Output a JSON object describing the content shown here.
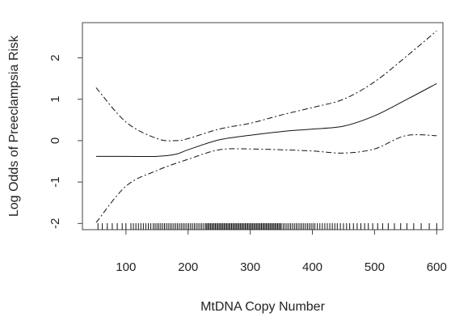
{
  "chart_data": {
    "type": "line",
    "xlabel": "MtDNA Copy Number",
    "ylabel": "Log Odds of Preeclampsia Risk",
    "xlim": [
      30,
      610
    ],
    "ylim": [
      -2.15,
      2.85
    ],
    "x_ticks": [
      100,
      200,
      300,
      400,
      500,
      600
    ],
    "y_ticks": [
      -2,
      -1,
      0,
      1,
      2
    ],
    "grid": false,
    "series": [
      {
        "style": "solid",
        "x": [
          52,
          100,
          150,
          180,
          200,
          250,
          300,
          350,
          400,
          450,
          500,
          550,
          600
        ],
        "y": [
          -0.38,
          -0.38,
          -0.38,
          -0.33,
          -0.22,
          0.02,
          0.13,
          0.22,
          0.28,
          0.35,
          0.6,
          0.98,
          1.38
        ]
      },
      {
        "style": "dashdot",
        "x": [
          52,
          100,
          150,
          180,
          200,
          250,
          300,
          350,
          400,
          450,
          500,
          550,
          600
        ],
        "y": [
          1.28,
          0.45,
          0.05,
          0.0,
          0.05,
          0.28,
          0.42,
          0.62,
          0.8,
          1.0,
          1.42,
          2.02,
          2.65
        ]
      },
      {
        "style": "dashdot",
        "x": [
          52,
          100,
          150,
          200,
          250,
          300,
          350,
          400,
          450,
          500,
          550,
          600
        ],
        "y": [
          -1.98,
          -1.1,
          -0.72,
          -0.45,
          -0.22,
          -0.2,
          -0.22,
          -0.25,
          -0.3,
          -0.2,
          0.12,
          0.12
        ]
      }
    ],
    "rug": [
      55,
      62,
      70,
      78,
      86,
      94,
      100,
      108,
      112,
      116,
      120,
      124,
      128,
      132,
      136,
      140,
      144,
      147,
      150,
      153,
      156,
      159,
      162,
      165,
      168,
      171,
      174,
      177,
      180,
      183,
      186,
      189,
      192,
      195,
      198,
      201,
      204,
      207,
      210,
      213,
      216,
      219,
      222,
      225,
      228,
      230,
      232,
      234,
      236,
      238,
      240,
      242,
      244,
      246,
      248,
      250,
      252,
      254,
      256,
      258,
      260,
      262,
      264,
      266,
      268,
      270,
      272,
      274,
      276,
      278,
      280,
      282,
      284,
      286,
      288,
      290,
      292,
      294,
      296,
      298,
      300,
      302,
      304,
      306,
      308,
      310,
      312,
      314,
      316,
      318,
      320,
      322,
      324,
      326,
      328,
      330,
      332,
      334,
      336,
      338,
      340,
      342,
      344,
      346,
      348,
      350,
      353,
      356,
      359,
      362,
      365,
      368,
      371,
      374,
      377,
      380,
      383,
      386,
      389,
      392,
      395,
      398,
      401,
      404,
      408,
      412,
      416,
      420,
      424,
      428,
      432,
      436,
      440,
      445,
      450,
      455,
      460,
      466,
      472,
      478,
      484,
      490,
      497,
      505,
      513,
      522,
      532,
      542,
      552,
      563,
      575,
      588,
      600
    ]
  }
}
